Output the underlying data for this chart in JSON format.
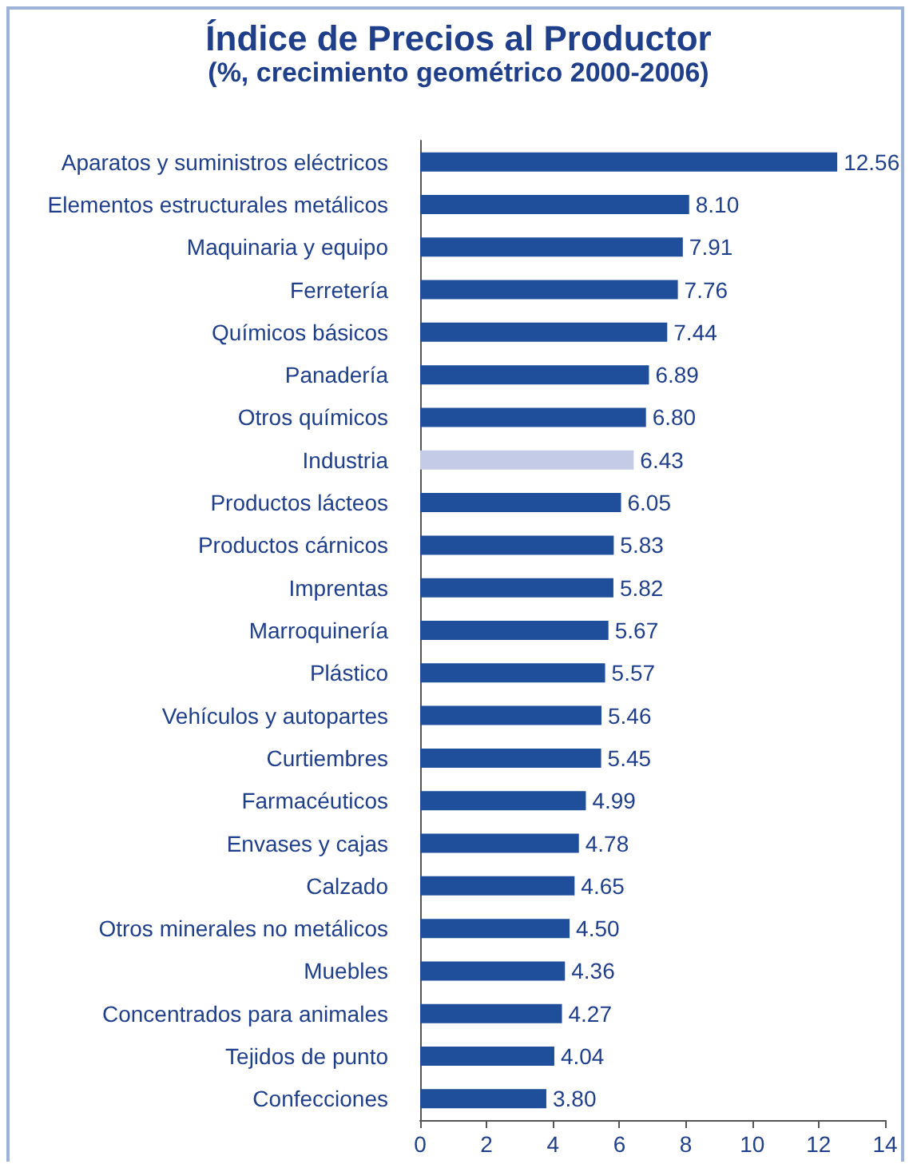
{
  "chart_data": {
    "type": "bar",
    "orientation": "horizontal",
    "title": "Índice de Precios al Productor",
    "subtitle": "(%, crecimiento geométrico 2000-2006)",
    "categories": [
      "Aparatos y suministros eléctricos",
      "Elementos estructurales metálicos",
      "Maquinaria y equipo",
      "Ferretería",
      "Químicos básicos",
      "Panadería",
      "Otros químicos",
      "Industria",
      "Productos lácteos",
      "Productos cárnicos",
      "Imprentas",
      "Marroquinería",
      "Plástico",
      "Vehículos y autopartes",
      "Curtiembres",
      "Farmacéuticos",
      "Envases y cajas",
      "Calzado",
      "Otros minerales no metálicos",
      "Muebles",
      "Concentrados para animales",
      "Tejidos de punto",
      "Confecciones"
    ],
    "values": [
      12.56,
      8.1,
      7.91,
      7.76,
      7.44,
      6.89,
      6.8,
      6.43,
      6.05,
      5.83,
      5.82,
      5.67,
      5.57,
      5.46,
      5.45,
      4.99,
      4.78,
      4.65,
      4.5,
      4.36,
      4.27,
      4.04,
      3.8
    ],
    "value_labels": [
      "12.56",
      "8.10",
      "7.91",
      "7.76",
      "7.44",
      "6.89",
      "6.80",
      "6.43",
      "6.05",
      "5.83",
      "5.82",
      "5.67",
      "5.57",
      "5.46",
      "5.45",
      "4.99",
      "4.78",
      "4.65",
      "4.50",
      "4.36",
      "4.27",
      "4.04",
      "3.80"
    ],
    "colors": [
      "#1f4e9a",
      "#1f4e9a",
      "#1f4e9a",
      "#1f4e9a",
      "#1f4e9a",
      "#1f4e9a",
      "#1f4e9a",
      "#c3cbe6",
      "#1f4e9a",
      "#1f4e9a",
      "#1f4e9a",
      "#1f4e9a",
      "#1f4e9a",
      "#1f4e9a",
      "#1f4e9a",
      "#1f4e9a",
      "#1f4e9a",
      "#1f4e9a",
      "#1f4e9a",
      "#1f4e9a",
      "#1f4e9a",
      "#1f4e9a",
      "#1f4e9a"
    ],
    "xlim": [
      0,
      14
    ],
    "xticks": [
      0,
      2,
      4,
      6,
      8,
      10,
      12,
      14
    ],
    "grid": false
  }
}
